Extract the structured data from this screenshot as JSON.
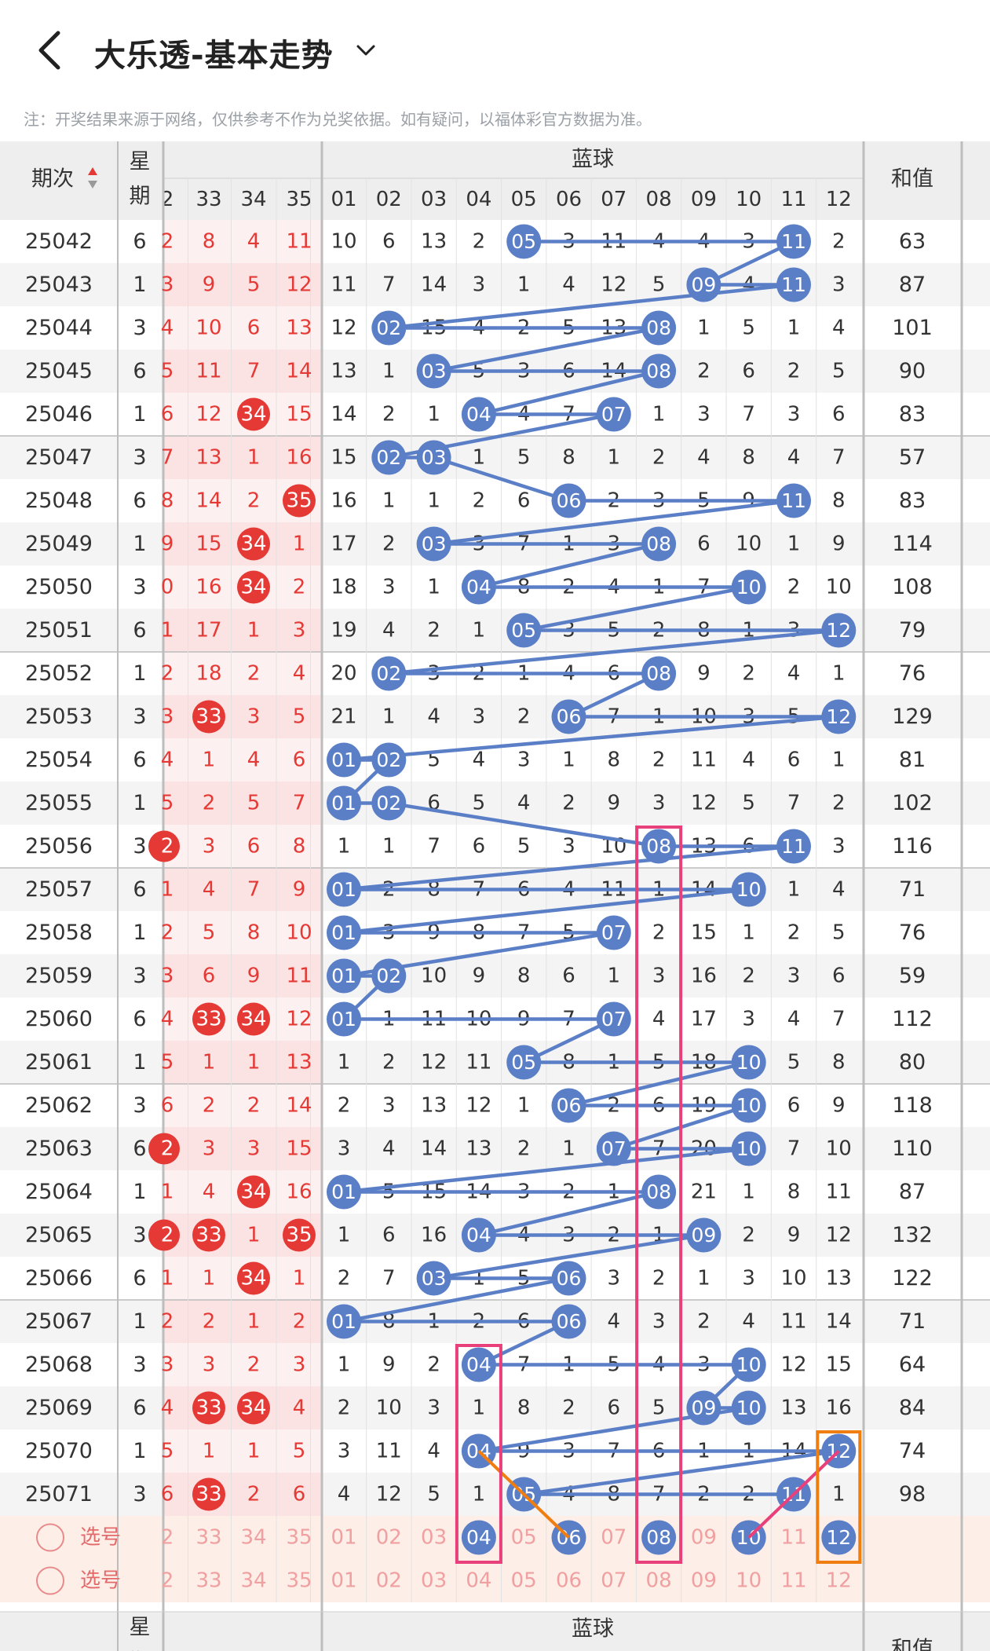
{
  "header": {
    "title": "大乐透-基本走势"
  },
  "note": "注：开奖结果来源于网络，仅供参考不作为兑奖依据。如有疑问，以福体彩官方数据为准。",
  "table_header": {
    "period": "期次",
    "week": "星期",
    "blue_group": "蓝球",
    "sum": "和值",
    "red_cols": [
      "2",
      "33",
      "34",
      "35"
    ],
    "blue_cols": [
      "01",
      "02",
      "03",
      "04",
      "05",
      "06",
      "07",
      "08",
      "09",
      "10",
      "11",
      "12"
    ]
  },
  "colors": {
    "red": "#e53935",
    "blue": "#5b7fc7",
    "pink": "#e8407a",
    "orange": "#f07d10"
  },
  "rows": [
    {
      "period": "25042",
      "week": "6",
      "red_edge": "2",
      "red": [
        "8",
        "4",
        "11"
      ],
      "red_hit": [],
      "blue": [
        10,
        6,
        13,
        2,
        0,
        3,
        11,
        4,
        4,
        3,
        0,
        2
      ],
      "sum": "63"
    },
    {
      "period": "25043",
      "week": "1",
      "red_edge": "3",
      "red": [
        "9",
        "5",
        "12"
      ],
      "red_hit": [],
      "blue": [
        11,
        7,
        14,
        3,
        1,
        4,
        12,
        5,
        0,
        4,
        0,
        3
      ],
      "sum": "87"
    },
    {
      "period": "25044",
      "week": "3",
      "red_edge": "4",
      "red": [
        "10",
        "6",
        "13"
      ],
      "red_hit": [],
      "blue": [
        12,
        0,
        15,
        4,
        2,
        5,
        13,
        0,
        1,
        5,
        1,
        4
      ],
      "sum": "101"
    },
    {
      "period": "25045",
      "week": "6",
      "red_edge": "5",
      "red": [
        "11",
        "7",
        "14"
      ],
      "red_hit": [],
      "blue": [
        13,
        1,
        0,
        5,
        3,
        6,
        14,
        0,
        2,
        6,
        2,
        5
      ],
      "sum": "90"
    },
    {
      "period": "25046",
      "week": "1",
      "red_edge": "6",
      "red": [
        "12",
        "34",
        "15"
      ],
      "red_hit": [
        1
      ],
      "blue": [
        14,
        2,
        1,
        0,
        4,
        7,
        0,
        1,
        3,
        7,
        3,
        6
      ],
      "sum": "83"
    },
    {
      "period": "25047",
      "week": "3",
      "red_edge": "7",
      "red": [
        "13",
        "1",
        "16"
      ],
      "red_hit": [],
      "blue": [
        15,
        0,
        0,
        1,
        5,
        8,
        1,
        2,
        4,
        8,
        4,
        7
      ],
      "sum": "57"
    },
    {
      "period": "25048",
      "week": "6",
      "red_edge": "8",
      "red": [
        "14",
        "2",
        "35"
      ],
      "red_hit": [
        2
      ],
      "blue": [
        16,
        1,
        1,
        2,
        6,
        0,
        2,
        3,
        5,
        9,
        0,
        8
      ],
      "sum": "83"
    },
    {
      "period": "25049",
      "week": "1",
      "red_edge": "9",
      "red": [
        "15",
        "34",
        "1"
      ],
      "red_hit": [
        1
      ],
      "blue": [
        17,
        2,
        0,
        3,
        7,
        1,
        3,
        0,
        6,
        10,
        1,
        9
      ],
      "sum": "114"
    },
    {
      "period": "25050",
      "week": "3",
      "red_edge": "0",
      "red": [
        "16",
        "34",
        "2"
      ],
      "red_hit": [
        1
      ],
      "blue": [
        18,
        3,
        1,
        0,
        8,
        2,
        4,
        1,
        7,
        0,
        2,
        10
      ],
      "sum": "108"
    },
    {
      "period": "25051",
      "week": "6",
      "red_edge": "1",
      "red": [
        "17",
        "1",
        "3"
      ],
      "red_hit": [],
      "blue": [
        19,
        4,
        2,
        1,
        0,
        3,
        5,
        2,
        8,
        1,
        3,
        0
      ],
      "sum": "79"
    },
    {
      "period": "25052",
      "week": "1",
      "red_edge": "2",
      "red": [
        "18",
        "2",
        "4"
      ],
      "red_hit": [],
      "blue": [
        20,
        0,
        3,
        2,
        1,
        4,
        6,
        0,
        9,
        2,
        4,
        1
      ],
      "sum": "76"
    },
    {
      "period": "25053",
      "week": "3",
      "red_edge": "3",
      "red": [
        "33",
        "3",
        "5"
      ],
      "red_hit": [
        0
      ],
      "blue": [
        21,
        1,
        4,
        3,
        2,
        0,
        7,
        1,
        10,
        3,
        5,
        0
      ],
      "sum": "129"
    },
    {
      "period": "25054",
      "week": "6",
      "red_edge": "4",
      "red": [
        "1",
        "4",
        "6"
      ],
      "red_hit": [],
      "blue": [
        0,
        0,
        5,
        4,
        3,
        1,
        8,
        2,
        11,
        4,
        6,
        1
      ],
      "sum": "81"
    },
    {
      "period": "25055",
      "week": "1",
      "red_edge": "5",
      "red": [
        "2",
        "5",
        "7"
      ],
      "red_hit": [],
      "blue": [
        0,
        0,
        6,
        5,
        4,
        2,
        9,
        3,
        12,
        5,
        7,
        2
      ],
      "sum": "102"
    },
    {
      "period": "25056",
      "week": "3",
      "red_edge": "2",
      "red": [
        "3",
        "6",
        "8"
      ],
      "red_hit": [],
      "edge_hit": true,
      "blue": [
        1,
        1,
        7,
        6,
        5,
        3,
        10,
        0,
        13,
        6,
        0,
        3
      ],
      "sum": "116"
    },
    {
      "period": "25057",
      "week": "6",
      "red_edge": "1",
      "red": [
        "4",
        "7",
        "9"
      ],
      "red_hit": [],
      "blue": [
        0,
        2,
        8,
        7,
        6,
        4,
        11,
        1,
        14,
        0,
        1,
        4
      ],
      "sum": "71"
    },
    {
      "period": "25058",
      "week": "1",
      "red_edge": "2",
      "red": [
        "5",
        "8",
        "10"
      ],
      "red_hit": [],
      "blue": [
        0,
        3,
        9,
        8,
        7,
        5,
        0,
        2,
        15,
        1,
        2,
        5
      ],
      "sum": "76"
    },
    {
      "period": "25059",
      "week": "3",
      "red_edge": "3",
      "red": [
        "6",
        "9",
        "11"
      ],
      "red_hit": [],
      "blue": [
        0,
        0,
        10,
        9,
        8,
        6,
        1,
        3,
        16,
        2,
        3,
        6
      ],
      "sum": "59"
    },
    {
      "period": "25060",
      "week": "6",
      "red_edge": "4",
      "red": [
        "33",
        "34",
        "12"
      ],
      "red_hit": [
        0,
        1
      ],
      "blue": [
        0,
        1,
        11,
        10,
        9,
        7,
        0,
        4,
        17,
        3,
        4,
        7
      ],
      "sum": "112"
    },
    {
      "period": "25061",
      "week": "1",
      "red_edge": "5",
      "red": [
        "1",
        "1",
        "13"
      ],
      "red_hit": [],
      "blue": [
        1,
        2,
        12,
        11,
        0,
        8,
        1,
        5,
        18,
        0,
        5,
        8
      ],
      "sum": "80"
    },
    {
      "period": "25062",
      "week": "3",
      "red_edge": "6",
      "red": [
        "2",
        "2",
        "14"
      ],
      "red_hit": [],
      "blue": [
        2,
        3,
        13,
        12,
        1,
        0,
        2,
        6,
        19,
        0,
        6,
        9
      ],
      "sum": "118"
    },
    {
      "period": "25063",
      "week": "6",
      "red_edge": "2",
      "red": [
        "3",
        "3",
        "15"
      ],
      "red_hit": [],
      "edge_hit": true,
      "blue": [
        3,
        4,
        14,
        13,
        2,
        1,
        0,
        7,
        20,
        0,
        7,
        10
      ],
      "sum": "110"
    },
    {
      "period": "25064",
      "week": "1",
      "red_edge": "1",
      "red": [
        "4",
        "34",
        "16"
      ],
      "red_hit": [
        1
      ],
      "blue": [
        0,
        5,
        15,
        14,
        3,
        2,
        1,
        0,
        21,
        1,
        8,
        11
      ],
      "sum": "87"
    },
    {
      "period": "25065",
      "week": "3",
      "red_edge": "2",
      "red": [
        "33",
        "1",
        "35"
      ],
      "red_hit": [
        0,
        2
      ],
      "edge_hit": true,
      "blue": [
        1,
        6,
        16,
        0,
        4,
        3,
        2,
        1,
        0,
        2,
        9,
        12
      ],
      "sum": "132"
    },
    {
      "period": "25066",
      "week": "6",
      "red_edge": "1",
      "red": [
        "1",
        "34",
        "1"
      ],
      "red_hit": [
        1
      ],
      "blue": [
        2,
        7,
        0,
        1,
        5,
        0,
        3,
        2,
        1,
        3,
        10,
        13
      ],
      "sum": "122"
    },
    {
      "period": "25067",
      "week": "1",
      "red_edge": "2",
      "red": [
        "2",
        "1",
        "2"
      ],
      "red_hit": [],
      "blue": [
        0,
        8,
        1,
        2,
        6,
        0,
        4,
        3,
        2,
        4,
        11,
        14
      ],
      "sum": "71"
    },
    {
      "period": "25068",
      "week": "3",
      "red_edge": "3",
      "red": [
        "3",
        "2",
        "3"
      ],
      "red_hit": [],
      "blue": [
        1,
        9,
        2,
        0,
        7,
        1,
        5,
        4,
        3,
        0,
        12,
        15
      ],
      "sum": "64"
    },
    {
      "period": "25069",
      "week": "6",
      "red_edge": "4",
      "red": [
        "33",
        "34",
        "4"
      ],
      "red_hit": [
        0,
        1
      ],
      "blue": [
        2,
        10,
        3,
        1,
        8,
        2,
        6,
        5,
        0,
        0,
        13,
        16
      ],
      "sum": "84"
    },
    {
      "period": "25070",
      "week": "1",
      "red_edge": "5",
      "red": [
        "1",
        "1",
        "5"
      ],
      "red_hit": [],
      "blue": [
        3,
        11,
        4,
        0,
        9,
        3,
        7,
        6,
        1,
        1,
        14,
        0
      ],
      "sum": "74"
    },
    {
      "period": "25071",
      "week": "3",
      "red_edge": "6",
      "red": [
        "33",
        "2",
        "6"
      ],
      "red_hit": [
        0
      ],
      "blue": [
        4,
        12,
        5,
        1,
        0,
        4,
        8,
        7,
        2,
        2,
        0,
        1
      ],
      "sum": "98"
    }
  ],
  "select_rows": [
    {
      "label": "选号",
      "selected": [
        4,
        6,
        8,
        10,
        12
      ]
    },
    {
      "label": "选号",
      "selected": []
    }
  ],
  "footer_header": {
    "period": "-",
    "week": "星期",
    "blue_group": "蓝球",
    "sum": "和值"
  }
}
